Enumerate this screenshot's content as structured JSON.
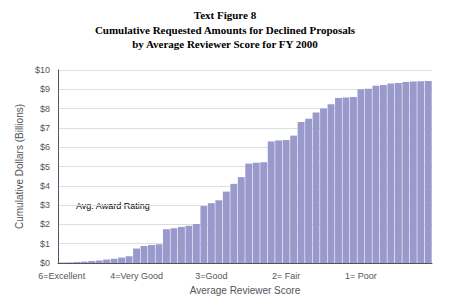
{
  "chart_data": {
    "type": "bar",
    "title": "Text Figure 8",
    "subtitle": "Cumulative Requested Amounts for Declined Proposals\nby Average Reviewer Score for FY 2000",
    "x_label": "Average Reviewer Score",
    "y_label": "Cumulative Dollars (Billions)",
    "annotation": "Avg. Award Rating",
    "categories": [
      "6=Excellent",
      null,
      null,
      null,
      null,
      null,
      null,
      null,
      null,
      null,
      "4=Very Good",
      null,
      null,
      null,
      null,
      null,
      null,
      null,
      null,
      null,
      "3=Good",
      null,
      null,
      null,
      null,
      null,
      null,
      null,
      null,
      null,
      "2= Fair",
      null,
      null,
      null,
      null,
      null,
      null,
      null,
      null,
      null,
      "1= Poor",
      null,
      null,
      null,
      null,
      null,
      null,
      null,
      null,
      null
    ],
    "values": [
      0.02,
      0.03,
      0.05,
      0.07,
      0.1,
      0.13,
      0.18,
      0.22,
      0.28,
      0.35,
      0.75,
      0.88,
      0.93,
      0.97,
      1.75,
      1.8,
      1.87,
      1.93,
      2.02,
      2.95,
      3.1,
      3.25,
      3.7,
      4.1,
      4.45,
      5.15,
      5.2,
      5.22,
      6.3,
      6.35,
      6.37,
      6.6,
      7.3,
      7.48,
      7.8,
      8.0,
      8.22,
      8.55,
      8.58,
      8.6,
      9.0,
      9.03,
      9.18,
      9.22,
      9.3,
      9.33,
      9.38,
      9.4,
      9.42,
      9.43
    ],
    "color": "#9999cc",
    "ylim": [
      0,
      10
    ],
    "yticks": [
      {
        "value": 0,
        "label": "$0"
      },
      {
        "value": 1,
        "label": "$1"
      },
      {
        "value": 2,
        "label": "$2"
      },
      {
        "value": 3,
        "label": "$3"
      },
      {
        "value": 4,
        "label": "$4"
      },
      {
        "value": 5,
        "label": "$5"
      },
      {
        "value": 6,
        "label": "$6"
      },
      {
        "value": 7,
        "label": "$7"
      },
      {
        "value": 8,
        "label": "$8"
      },
      {
        "value": 9,
        "label": "$9"
      },
      {
        "value": 10,
        "label": "$10"
      }
    ],
    "grid": true
  }
}
